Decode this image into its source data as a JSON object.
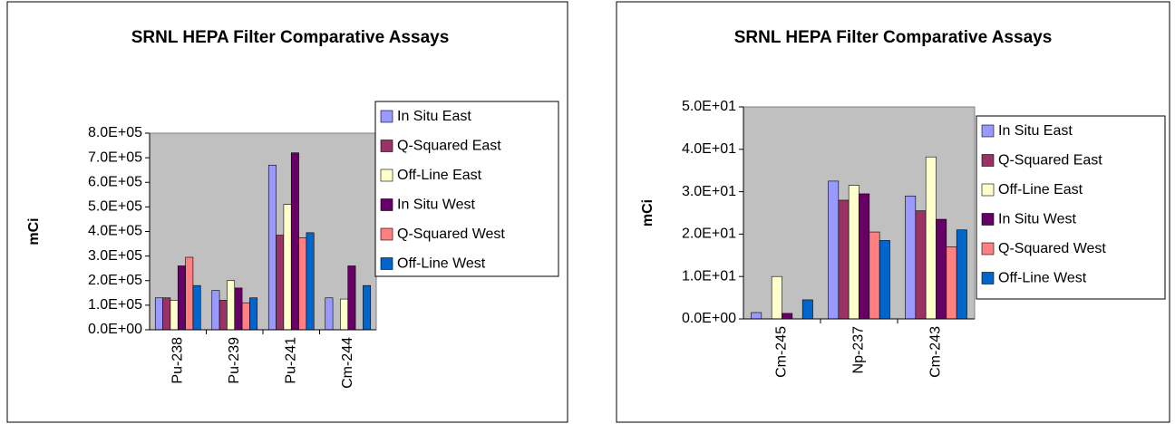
{
  "chart_data": [
    {
      "type": "bar",
      "title": "SRNL HEPA Filter Comparative Assays",
      "y_label": "mCi",
      "categories": [
        "Pu-238",
        "Pu-239",
        "Pu-241",
        "Cm-244"
      ],
      "series": [
        {
          "name": "In Situ East",
          "color": "#9999ff",
          "values": [
            130000,
            160000,
            670000,
            130000
          ]
        },
        {
          "name": "Q-Squared East",
          "color": "#993366",
          "values": [
            130000,
            120000,
            385000,
            null
          ]
        },
        {
          "name": "Off-Line East",
          "color": "#ffffcc",
          "values": [
            120000,
            200000,
            510000,
            125000
          ]
        },
        {
          "name": "In Situ West",
          "color": "#660066",
          "values": [
            260000,
            170000,
            720000,
            260000
          ]
        },
        {
          "name": "Q-Squared West",
          "color": "#ff8080",
          "values": [
            295000,
            110000,
            375000,
            null
          ]
        },
        {
          "name": "Off-Line West",
          "color": "#0066cc",
          "values": [
            180000,
            130000,
            395000,
            180000
          ]
        }
      ],
      "ylim": [
        0,
        800000
      ],
      "yticks": [
        {
          "value": 0,
          "label": "0.0E+00"
        },
        {
          "value": 100000,
          "label": "1.0E+05"
        },
        {
          "value": 200000,
          "label": "2.0E+05"
        },
        {
          "value": 300000,
          "label": "3.0E+05"
        },
        {
          "value": 400000,
          "label": "4.0E+05"
        },
        {
          "value": 500000,
          "label": "5.0E+05"
        },
        {
          "value": 600000,
          "label": "6.0E+05"
        },
        {
          "value": 700000,
          "label": "7.0E+05"
        },
        {
          "value": 800000,
          "label": "8.0E+05"
        }
      ],
      "plot_background": "#c0c0c0",
      "legend": "right"
    },
    {
      "type": "bar",
      "title": "SRNL HEPA Filter Comparative Assays",
      "y_label": "mCi",
      "categories": [
        "Cm-245",
        "Np-237",
        "Cm-243"
      ],
      "series": [
        {
          "name": "In Situ East",
          "color": "#9999ff",
          "values": [
            1.5,
            32.5,
            29
          ]
        },
        {
          "name": "Q-Squared East",
          "color": "#993366",
          "values": [
            null,
            28,
            25.5
          ]
        },
        {
          "name": "Off-Line East",
          "color": "#ffffcc",
          "values": [
            10,
            31.5,
            38.2
          ]
        },
        {
          "name": "In Situ West",
          "color": "#660066",
          "values": [
            1.3,
            29.5,
            23.5
          ]
        },
        {
          "name": "Q-Squared West",
          "color": "#ff8080",
          "values": [
            null,
            20.5,
            17
          ]
        },
        {
          "name": "Off-Line West",
          "color": "#0066cc",
          "values": [
            4.5,
            18.5,
            21
          ]
        }
      ],
      "ylim": [
        0,
        50
      ],
      "yticks": [
        {
          "value": 0,
          "label": "0.0E+00"
        },
        {
          "value": 10,
          "label": "1.0E+01"
        },
        {
          "value": 20,
          "label": "2.0E+01"
        },
        {
          "value": 30,
          "label": "3.0E+01"
        },
        {
          "value": 40,
          "label": "4.0E+01"
        },
        {
          "value": 50,
          "label": "5.0E+01"
        }
      ],
      "plot_background": "#c0c0c0",
      "legend": "right"
    }
  ]
}
